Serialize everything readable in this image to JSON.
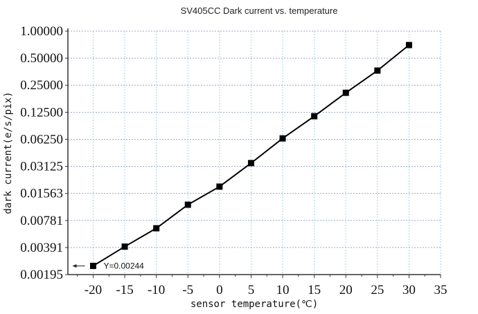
{
  "chart_data": {
    "type": "line",
    "title": "SV405CC Dark current vs. temperature",
    "xlabel": "sensor temperature(℃)",
    "ylabel": "dark current(e/s/pix)",
    "xlim": [
      -24,
      35
    ],
    "ylim": [
      0.001953125,
      1.0
    ],
    "yscale": "log2",
    "grid": true,
    "x_ticks": [
      "-20",
      "-15",
      "-10",
      "-5",
      "0",
      "5",
      "10",
      "15",
      "20",
      "25",
      "30",
      "35"
    ],
    "x_tick_values": [
      -20,
      -15,
      -10,
      -5,
      0,
      5,
      10,
      15,
      20,
      25,
      30,
      35
    ],
    "y_ticks": [
      "1.00000",
      "0.50000",
      "0.25000",
      "0.12500",
      "0.06250",
      "0.03125",
      "0.01563",
      "0.00781",
      "0.00391",
      "0.00195"
    ],
    "y_tick_values": [
      1.0,
      0.5,
      0.25,
      0.125,
      0.0625,
      0.03125,
      0.015625,
      0.0078125,
      0.00390625,
      0.001953125
    ],
    "series": [
      {
        "name": "dark current",
        "color": "#000000",
        "x": [
          -20,
          -15,
          -10,
          -5,
          0,
          5,
          10,
          15,
          20,
          25,
          30
        ],
        "y": [
          0.00244,
          0.004,
          0.0064,
          0.0117,
          0.0186,
          0.034,
          0.064,
          0.113,
          0.206,
          0.364,
          0.7
        ]
      }
    ],
    "annotation": {
      "text": "Y=0.00244",
      "x": -20,
      "y": 0.00244
    }
  }
}
